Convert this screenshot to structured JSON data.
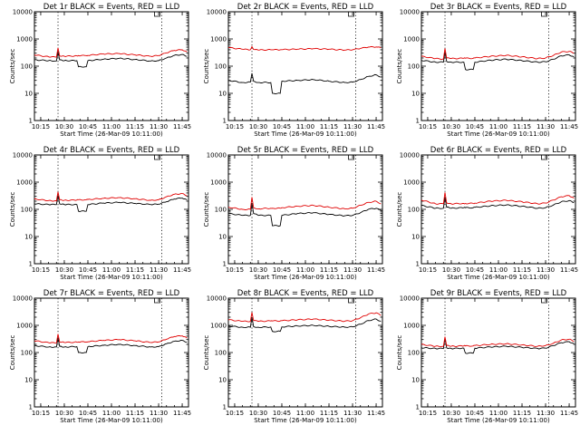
{
  "colors": {
    "events": "#000000",
    "lld": "#e00000"
  },
  "chart_data": [
    {
      "type": "line",
      "title": "Det 1r BLACK = Events, RED = LLD",
      "xlabel": "Start Time (26-Mar-09 10:11:00)",
      "ylabel": "Counts/sec",
      "x_ticks": [
        "10:15",
        "10:30",
        "10:45",
        "11:00",
        "11:15",
        "11:30",
        "11:45"
      ],
      "y_ticks": [
        "1",
        "10",
        "100",
        "1000",
        "10000"
      ],
      "yscale": "log",
      "ylim": [
        1,
        10000
      ],
      "xlim": [
        "10:11",
        "11:49"
      ],
      "marker_lines": [
        "10:26",
        "11:32"
      ],
      "x": [
        "10:11",
        "10:20",
        "10:25",
        "10:26",
        "10:27",
        "10:30",
        "10:38",
        "10:39",
        "10:44",
        "10:45",
        "10:55",
        "11:05",
        "11:15",
        "11:25",
        "11:30",
        "11:35",
        "11:40",
        "11:45",
        "11:48"
      ],
      "series": [
        {
          "name": "BLACK = Events",
          "values": [
            170,
            160,
            155,
            330,
            170,
            160,
            160,
            95,
            95,
            160,
            180,
            195,
            175,
            155,
            160,
            200,
            250,
            270,
            230
          ]
        },
        {
          "name": "RED = LLD",
          "values": [
            260,
            220,
            215,
            470,
            240,
            230,
            240,
            245,
            245,
            250,
            280,
            290,
            260,
            230,
            245,
            310,
            380,
            400,
            330
          ]
        }
      ]
    },
    {
      "type": "line",
      "title": "Det 2r BLACK = Events, RED = LLD",
      "xlabel": "Start Time (26-Mar-09 10:11:00)",
      "ylabel": "Counts/sec",
      "x_ticks": [
        "10:15",
        "10:30",
        "10:45",
        "11:00",
        "11:15",
        "11:30",
        "11:45"
      ],
      "y_ticks": [
        "1",
        "10",
        "100",
        "1000",
        "10000"
      ],
      "yscale": "log",
      "ylim": [
        1,
        10000
      ],
      "xlim": [
        "10:11",
        "11:49"
      ],
      "marker_lines": [
        "10:26",
        "11:32"
      ],
      "x": [
        "10:11",
        "10:20",
        "10:25",
        "10:26",
        "10:27",
        "10:30",
        "10:38",
        "10:39",
        "10:44",
        "10:45",
        "10:55",
        "11:05",
        "11:15",
        "11:25",
        "11:30",
        "11:35",
        "11:40",
        "11:45",
        "11:48"
      ],
      "series": [
        {
          "name": "BLACK = Events",
          "values": [
            30,
            25,
            26,
            55,
            28,
            25,
            25,
            10,
            10,
            28,
            30,
            32,
            28,
            25,
            26,
            32,
            42,
            48,
            40
          ]
        },
        {
          "name": "RED = LLD",
          "values": [
            480,
            420,
            400,
            520,
            410,
            390,
            400,
            400,
            400,
            405,
            420,
            440,
            420,
            390,
            400,
            450,
            500,
            510,
            470
          ]
        }
      ]
    },
    {
      "type": "line",
      "title": "Det 3r BLACK = Events, RED = LLD",
      "xlabel": "Start Time (26-Mar-09 10:11:00)",
      "ylabel": "Counts/sec",
      "x_ticks": [
        "10:15",
        "10:30",
        "10:45",
        "11:00",
        "11:15",
        "11:30",
        "11:45"
      ],
      "y_ticks": [
        "1",
        "10",
        "100",
        "1000",
        "10000"
      ],
      "yscale": "log",
      "ylim": [
        1,
        10000
      ],
      "xlim": [
        "10:11",
        "11:49"
      ],
      "marker_lines": [
        "10:26",
        "11:32"
      ],
      "x": [
        "10:11",
        "10:20",
        "10:25",
        "10:26",
        "10:27",
        "10:30",
        "10:38",
        "10:39",
        "10:44",
        "10:45",
        "10:55",
        "11:05",
        "11:15",
        "11:25",
        "11:30",
        "11:35",
        "11:40",
        "11:45",
        "11:48"
      ],
      "series": [
        {
          "name": "BLACK = Events",
          "values": [
            165,
            140,
            140,
            320,
            150,
            140,
            140,
            75,
            75,
            140,
            165,
            180,
            160,
            140,
            145,
            180,
            240,
            260,
            220
          ]
        },
        {
          "name": "RED = LLD",
          "values": [
            230,
            190,
            185,
            450,
            200,
            190,
            195,
            195,
            195,
            200,
            230,
            250,
            220,
            190,
            200,
            250,
            330,
            350,
            300
          ]
        }
      ]
    },
    {
      "type": "line",
      "title": "Det 4r BLACK = Events, RED = LLD",
      "xlabel": "Start Time (26-Mar-09 10:11:00)",
      "ylabel": "Counts/sec",
      "x_ticks": [
        "10:15",
        "10:30",
        "10:45",
        "11:00",
        "11:15",
        "11:30",
        "11:45"
      ],
      "y_ticks": [
        "1",
        "10",
        "100",
        "1000",
        "10000"
      ],
      "yscale": "log",
      "ylim": [
        1,
        10000
      ],
      "xlim": [
        "10:11",
        "11:49"
      ],
      "marker_lines": [
        "10:26",
        "11:32"
      ],
      "x": [
        "10:11",
        "10:20",
        "10:25",
        "10:26",
        "10:27",
        "10:30",
        "10:38",
        "10:39",
        "10:44",
        "10:45",
        "10:55",
        "11:05",
        "11:15",
        "11:25",
        "11:30",
        "11:35",
        "11:40",
        "11:45",
        "11:48"
      ],
      "series": [
        {
          "name": "BLACK = Events",
          "values": [
            160,
            150,
            150,
            320,
            160,
            150,
            150,
            85,
            85,
            150,
            170,
            180,
            165,
            150,
            155,
            190,
            240,
            260,
            220
          ]
        },
        {
          "name": "RED = LLD",
          "values": [
            240,
            210,
            205,
            440,
            225,
            215,
            220,
            225,
            225,
            230,
            255,
            270,
            245,
            215,
            225,
            290,
            360,
            380,
            320
          ]
        }
      ]
    },
    {
      "type": "line",
      "title": "Det 5r BLACK = Events, RED = LLD",
      "xlabel": "Start Time (26-Mar-09 10:11:00)",
      "ylabel": "Counts/sec",
      "x_ticks": [
        "10:15",
        "10:30",
        "10:45",
        "11:00",
        "11:15",
        "11:30",
        "11:45"
      ],
      "y_ticks": [
        "1",
        "10",
        "100",
        "1000",
        "10000"
      ],
      "yscale": "log",
      "ylim": [
        1,
        10000
      ],
      "xlim": [
        "10:11",
        "11:49"
      ],
      "marker_lines": [
        "10:26",
        "11:32"
      ],
      "x": [
        "10:11",
        "10:20",
        "10:25",
        "10:26",
        "10:27",
        "10:30",
        "10:38",
        "10:39",
        "10:44",
        "10:45",
        "10:55",
        "11:05",
        "11:15",
        "11:25",
        "11:30",
        "11:35",
        "11:40",
        "11:45",
        "11:48"
      ],
      "series": [
        {
          "name": "BLACK = Events",
          "values": [
            70,
            60,
            60,
            170,
            70,
            60,
            60,
            25,
            25,
            60,
            70,
            75,
            65,
            58,
            60,
            75,
            100,
            110,
            90
          ]
        },
        {
          "name": "RED = LLD",
          "values": [
            120,
            100,
            100,
            280,
            115,
            105,
            110,
            110,
            110,
            115,
            130,
            140,
            120,
            105,
            110,
            140,
            180,
            200,
            160
          ]
        }
      ]
    },
    {
      "type": "line",
      "title": "Det 6r BLACK = Events, RED = LLD",
      "xlabel": "Start Time (26-Mar-09 10:11:00)",
      "ylabel": "Counts/sec",
      "x_ticks": [
        "10:15",
        "10:30",
        "10:45",
        "11:00",
        "11:15",
        "11:30",
        "11:45"
      ],
      "y_ticks": [
        "1",
        "10",
        "100",
        "1000",
        "10000"
      ],
      "yscale": "log",
      "ylim": [
        1,
        10000
      ],
      "xlim": [
        "10:11",
        "11:49"
      ],
      "marker_lines": [
        "10:26",
        "11:32"
      ],
      "x": [
        "10:11",
        "10:20",
        "10:25",
        "10:26",
        "10:27",
        "10:30",
        "10:38",
        "10:39",
        "10:44",
        "10:45",
        "10:55",
        "11:05",
        "11:15",
        "11:25",
        "11:30",
        "11:35",
        "11:40",
        "11:45",
        "11:48"
      ],
      "series": [
        {
          "name": "BLACK = Events",
          "values": [
            140,
            110,
            110,
            280,
            120,
            110,
            115,
            115,
            115,
            118,
            135,
            145,
            130,
            110,
            115,
            145,
            190,
            210,
            175
          ]
        },
        {
          "name": "RED = LLD",
          "values": [
            220,
            160,
            160,
            420,
            175,
            160,
            165,
            165,
            165,
            170,
            200,
            215,
            190,
            160,
            170,
            220,
            290,
            320,
            260
          ]
        }
      ]
    },
    {
      "type": "line",
      "title": "Det 7r BLACK = Events, RED = LLD",
      "xlabel": "Start Time (26-Mar-09 10:11:00)",
      "ylabel": "Counts/sec",
      "x_ticks": [
        "10:15",
        "10:30",
        "10:45",
        "11:00",
        "11:15",
        "11:30",
        "11:45"
      ],
      "y_ticks": [
        "1",
        "10",
        "100",
        "1000",
        "10000"
      ],
      "yscale": "log",
      "ylim": [
        1,
        10000
      ],
      "xlim": [
        "10:11",
        "11:49"
      ],
      "marker_lines": [
        "10:26",
        "11:32"
      ],
      "x": [
        "10:11",
        "10:20",
        "10:25",
        "10:26",
        "10:27",
        "10:30",
        "10:38",
        "10:39",
        "10:44",
        "10:45",
        "10:55",
        "11:05",
        "11:15",
        "11:25",
        "11:30",
        "11:35",
        "11:40",
        "11:45",
        "11:48"
      ],
      "series": [
        {
          "name": "BLACK = Events",
          "values": [
            180,
            160,
            160,
            340,
            170,
            160,
            165,
            100,
            100,
            165,
            185,
            200,
            180,
            160,
            165,
            210,
            260,
            280,
            240
          ]
        },
        {
          "name": "RED = LLD",
          "values": [
            270,
            230,
            225,
            480,
            245,
            235,
            240,
            245,
            245,
            250,
            280,
            300,
            270,
            235,
            245,
            310,
            390,
            410,
            340
          ]
        }
      ]
    },
    {
      "type": "line",
      "title": "Det 8r BLACK = Events, RED = LLD",
      "xlabel": "Start Time (26-Mar-09 10:11:00)",
      "ylabel": "Counts/sec",
      "x_ticks": [
        "10:15",
        "10:30",
        "10:45",
        "11:00",
        "11:15",
        "11:30",
        "11:45"
      ],
      "y_ticks": [
        "1",
        "10",
        "100",
        "1000",
        "10000"
      ],
      "yscale": "log",
      "ylim": [
        1,
        10000
      ],
      "xlim": [
        "10:11",
        "11:49"
      ],
      "marker_lines": [
        "10:26",
        "11:32"
      ],
      "x": [
        "10:11",
        "10:20",
        "10:25",
        "10:26",
        "10:27",
        "10:30",
        "10:38",
        "10:39",
        "10:44",
        "10:45",
        "10:55",
        "11:05",
        "11:15",
        "11:25",
        "11:30",
        "11:35",
        "11:40",
        "11:45",
        "11:48"
      ],
      "series": [
        {
          "name": "BLACK = Events",
          "values": [
            950,
            850,
            850,
            2000,
            900,
            850,
            870,
            600,
            600,
            880,
            950,
            1000,
            920,
            860,
            880,
            1100,
            1500,
            1700,
            1400
          ]
        },
        {
          "name": "RED = LLD",
          "values": [
            1600,
            1400,
            1400,
            3000,
            1500,
            1400,
            1450,
            1450,
            1450,
            1480,
            1600,
            1700,
            1550,
            1420,
            1480,
            1900,
            2600,
            2900,
            2300
          ]
        }
      ]
    },
    {
      "type": "line",
      "title": "Det 9r BLACK = Events, RED = LLD",
      "xlabel": "Start Time (26-Mar-09 10:11:00)",
      "ylabel": "Counts/sec",
      "x_ticks": [
        "10:15",
        "10:30",
        "10:45",
        "11:00",
        "11:15",
        "11:30",
        "11:45"
      ],
      "y_ticks": [
        "1",
        "10",
        "100",
        "1000",
        "10000"
      ],
      "yscale": "log",
      "ylim": [
        1,
        10000
      ],
      "xlim": [
        "10:11",
        "11:49"
      ],
      "marker_lines": [
        "10:26",
        "11:32"
      ],
      "x": [
        "10:11",
        "10:20",
        "10:25",
        "10:26",
        "10:27",
        "10:30",
        "10:38",
        "10:39",
        "10:44",
        "10:45",
        "10:55",
        "11:05",
        "11:15",
        "11:25",
        "11:30",
        "11:35",
        "11:40",
        "11:45",
        "11:48"
      ],
      "series": [
        {
          "name": "BLACK = Events",
          "values": [
            150,
            140,
            140,
            320,
            150,
            140,
            145,
            95,
            95,
            145,
            160,
            170,
            155,
            140,
            145,
            180,
            230,
            250,
            210
          ]
        },
        {
          "name": "RED = LLD",
          "values": [
            200,
            170,
            170,
            380,
            180,
            170,
            175,
            175,
            175,
            180,
            200,
            210,
            190,
            170,
            180,
            220,
            290,
            310,
            260
          ]
        }
      ]
    }
  ]
}
